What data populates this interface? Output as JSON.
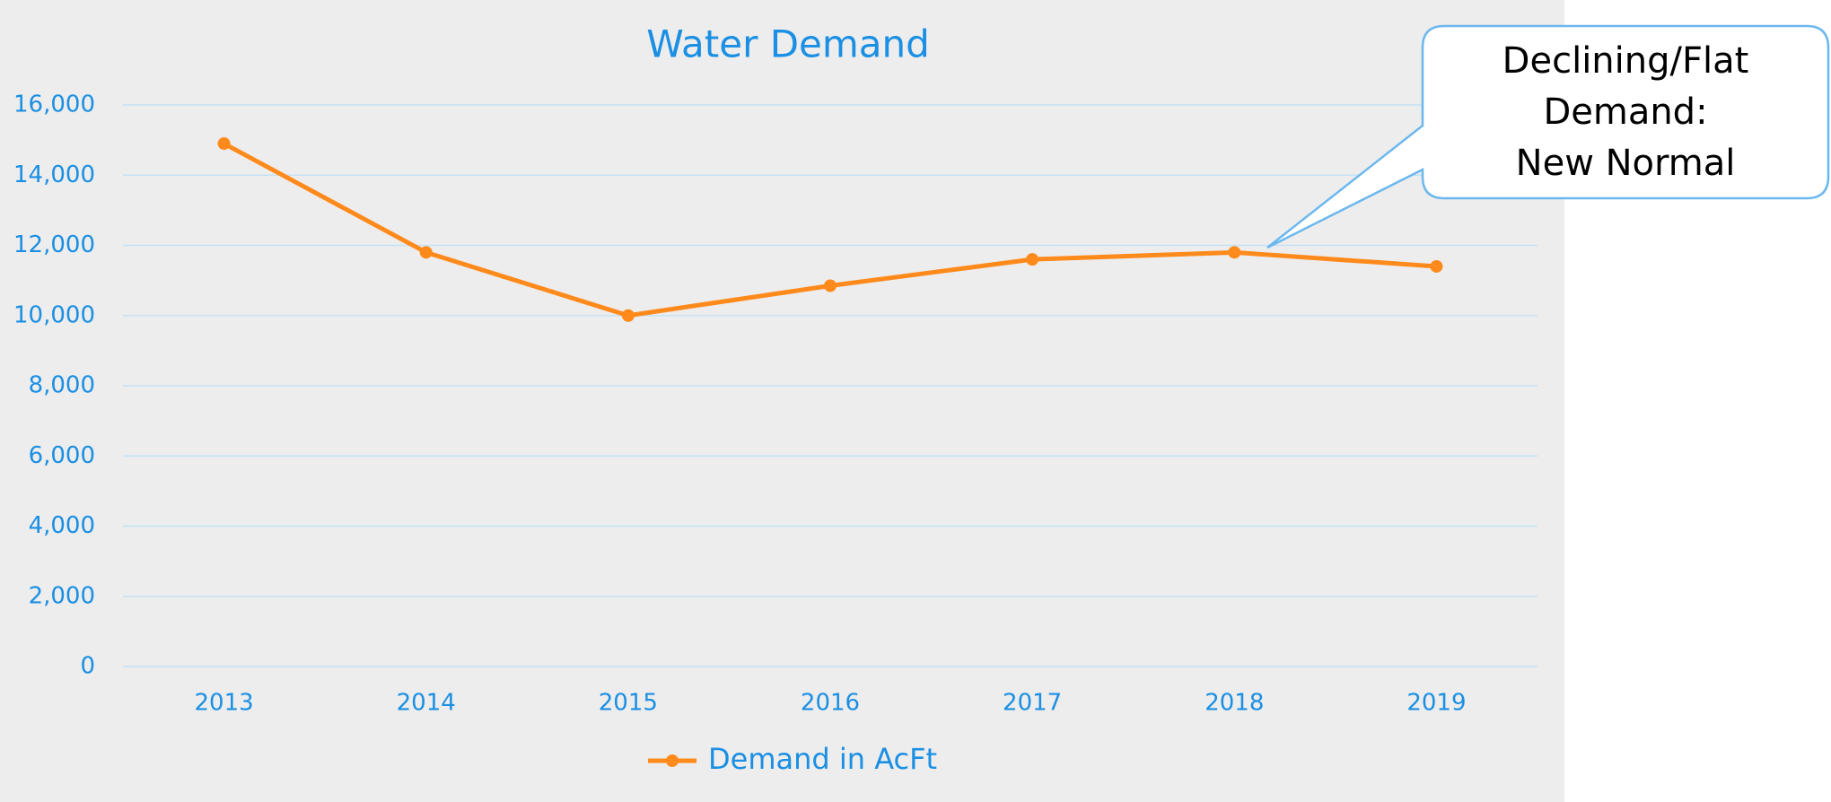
{
  "chart_data": {
    "type": "line",
    "title": "Water Demand",
    "categories": [
      "2013",
      "2014",
      "2015",
      "2016",
      "2017",
      "2018",
      "2019"
    ],
    "series": [
      {
        "name": "Demand in AcFt",
        "color": "#ff8a1c",
        "values": [
          14900,
          11800,
          10000,
          10850,
          11600,
          11800,
          11400
        ]
      }
    ],
    "ylim": [
      0,
      16000
    ],
    "yticks": [
      0,
      {
        "value": 2000,
        "label": "2,000"
      },
      {
        "value": 4000,
        "label": "4,000"
      },
      {
        "value": 6000,
        "label": "6,000"
      },
      {
        "value": 8000,
        "label": "8,000"
      },
      {
        "value": 10000,
        "label": "10,000"
      },
      {
        "value": 12000,
        "label": "12,000"
      },
      {
        "value": 14000,
        "label": "14,000"
      },
      {
        "value": 16000,
        "label": "16,000"
      }
    ],
    "grid": true,
    "legend": "bottom",
    "annotation": [
      "Declining/Flat",
      "Demand:",
      "New Normal"
    ]
  }
}
